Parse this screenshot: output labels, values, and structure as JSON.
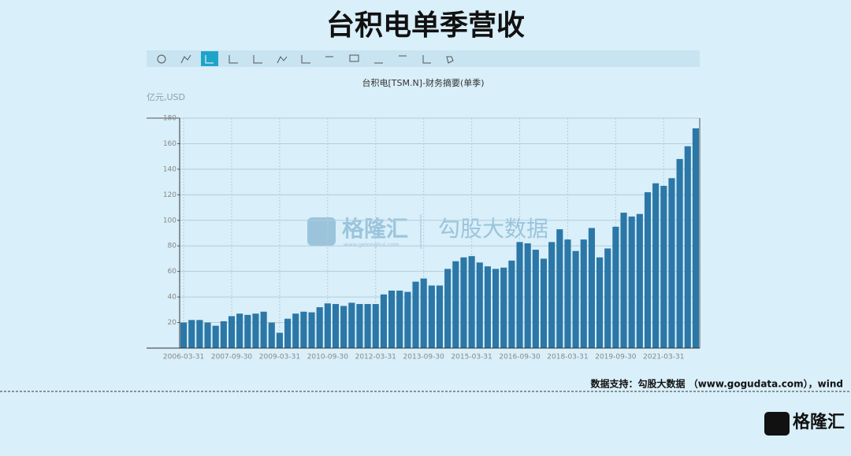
{
  "chart_data": {
    "type": "bar",
    "title": "台积电单季营收",
    "subtitle": "台积电[TSM.N]-财务摘要(单季)",
    "unit_label": "亿元,USD",
    "watermark": [
      "格隆汇",
      "www.gelonghui.com",
      "勾股大数据"
    ],
    "source": "数据支持：勾股大数据 （www.gogudata.com），wind",
    "categories": [
      "2006-03-31",
      null,
      null,
      null,
      null,
      null,
      "2007-09-30",
      null,
      null,
      null,
      null,
      null,
      "2009-03-31",
      null,
      null,
      null,
      null,
      null,
      "2010-09-30",
      null,
      null,
      null,
      null,
      null,
      "2012-03-31",
      null,
      null,
      null,
      null,
      null,
      "2013-09-30",
      null,
      null,
      null,
      null,
      null,
      "2015-03-31",
      null,
      null,
      null,
      null,
      null,
      "2016-09-30",
      null,
      null,
      null,
      null,
      null,
      "2018-03-31",
      null,
      null,
      null,
      null,
      null,
      "2019-09-30",
      null,
      null,
      null,
      null,
      null,
      "2021-03-31",
      null,
      null,
      null,
      null
    ],
    "values": [
      20,
      22,
      22,
      20,
      17.5,
      21,
      25,
      27,
      26,
      27,
      28.5,
      20,
      12,
      23,
      27,
      28.5,
      28,
      32,
      35,
      34.5,
      33,
      35.5,
      34.5,
      34.5,
      34.5,
      42,
      45,
      45,
      44,
      52,
      54.5,
      49,
      49,
      62,
      68,
      71,
      72,
      67,
      64,
      62,
      63,
      68.5,
      83,
      82,
      77,
      70,
      83,
      93,
      85,
      76,
      85,
      94,
      71,
      78,
      95,
      106,
      103,
      105,
      122,
      129,
      127,
      133,
      148,
      158,
      172
    ],
    "color": "#2b77a7",
    "ylim": [
      0,
      180
    ],
    "yticks": [
      20,
      40,
      60,
      80,
      100,
      120,
      140,
      160,
      180
    ],
    "grid": true
  }
}
